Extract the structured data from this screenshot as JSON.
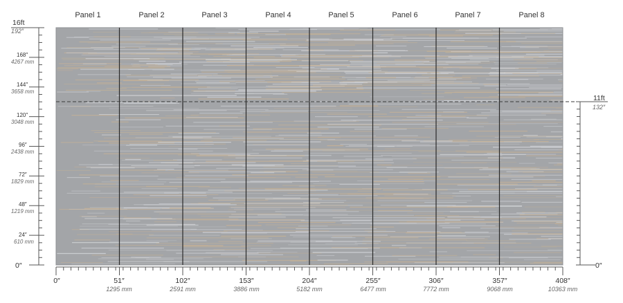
{
  "panels": [
    "Panel 1",
    "Panel 2",
    "Panel 3",
    "Panel 4",
    "Panel 5",
    "Panel 6",
    "Panel 7",
    "Panel 8"
  ],
  "left_scale": {
    "top_ft": "16ft",
    "top_in": "192″",
    "zero": "0″",
    "ticks": [
      {
        "in": "168″",
        "mm": "4267 mm"
      },
      {
        "in": "144″",
        "mm": "3658 mm"
      },
      {
        "in": "120″",
        "mm": "3048 mm"
      },
      {
        "in": "96″",
        "mm": "2438 mm"
      },
      {
        "in": "72″",
        "mm": "1829 mm"
      },
      {
        "in": "48″",
        "mm": "1219 mm"
      },
      {
        "in": "24″",
        "mm": "610 mm"
      }
    ]
  },
  "right_scale": {
    "height_ft": "11ft",
    "height_in": "132″",
    "zero": "0″"
  },
  "bottom_scale": [
    {
      "in": "0″",
      "mm": ""
    },
    {
      "in": "51″",
      "mm": "1295 mm"
    },
    {
      "in": "102″",
      "mm": "2591 mm"
    },
    {
      "in": "153″",
      "mm": "3886 mm"
    },
    {
      "in": "204″",
      "mm": "5182 mm"
    },
    {
      "in": "255″",
      "mm": "6477 mm"
    },
    {
      "in": "306″",
      "mm": "7772 mm"
    },
    {
      "in": "357″",
      "mm": "9068 mm"
    },
    {
      "in": "408″",
      "mm": "10363 mm"
    }
  ],
  "colors": {
    "base": "#a3a5a8",
    "streak_light": "#d2d4d8",
    "streak_tan": "#c7b295",
    "panel_line": "#2a2a2a",
    "dashed_line": "#3a3a3a"
  }
}
